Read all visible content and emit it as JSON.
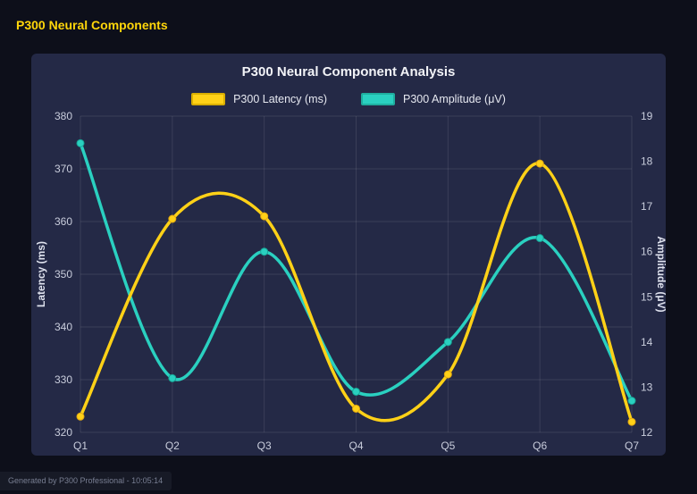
{
  "page": {
    "title": "P300 Neural Components",
    "footer": "Generated by P300 Professional - 10:05:14"
  },
  "chart_data": {
    "type": "line",
    "title": "P300 Neural Component Analysis",
    "categories": [
      "Q1",
      "Q2",
      "Q3",
      "Q4",
      "Q5",
      "Q6",
      "Q7"
    ],
    "series": [
      {
        "name": "P300 Latency (ms)",
        "axis": "left",
        "color": "#ffd117",
        "point_border": "#e2a812",
        "swatch_border": "#d9ae00",
        "values": [
          323,
          360.5,
          361,
          324.5,
          331,
          371,
          322
        ]
      },
      {
        "name": "P300 Amplitude (μV)",
        "axis": "right",
        "color": "#2ad0c0",
        "point_border": "#17a496",
        "swatch_border": "#1fae9f",
        "values": [
          18.4,
          13.2,
          16.0,
          12.9,
          14.0,
          16.3,
          12.7
        ]
      }
    ],
    "left_axis": {
      "label": "Latency (ms)",
      "min": 320,
      "max": 380,
      "tick_step": 10
    },
    "right_axis": {
      "label": "Amplitude (μV)",
      "min": 12,
      "max": 19,
      "tick_step": 1
    },
    "grid": true,
    "legend_position": "top",
    "styles": {
      "grid_color": "rgba(255,255,255,0.10)",
      "tick_color": "#c9cddc",
      "axis_title_color": "#dfe2ee",
      "line_width": 3.5,
      "point_radius": 4
    }
  }
}
